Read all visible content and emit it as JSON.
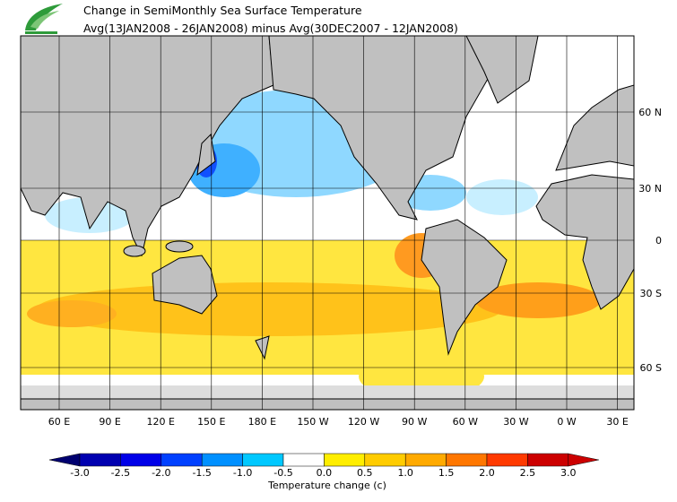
{
  "header": {
    "title": "Change in SemiMonthly Sea Surface Temperature",
    "subtitle": "Avg(13JAN2008 - 26JAN2008) minus Avg(30DEC2007 - 12JAN2008)"
  },
  "map": {
    "lon_labels": [
      "60 E",
      "90 E",
      "120 E",
      "150 E",
      "180 E",
      "150 W",
      "120 W",
      "90 W",
      "60 W",
      "30 W",
      "0 W",
      "30 E"
    ],
    "lat_labels": [
      "60 N",
      "30 N",
      "0",
      "30 S",
      "60 S"
    ]
  },
  "colorbar": {
    "ticks": [
      "-3.0",
      "-2.5",
      "-2.0",
      "-1.5",
      "-1.0",
      "-0.5",
      "0.0",
      "0.5",
      "1.0",
      "1.5",
      "2.0",
      "2.5",
      "3.0"
    ],
    "colors": [
      "#000070",
      "#0000b0",
      "#0000e8",
      "#0040ff",
      "#0090ff",
      "#00c8ff",
      "#ffffff",
      "#ffee00",
      "#ffcc00",
      "#ffaa00",
      "#ff7700",
      "#ff3a00",
      "#cc0000",
      "#cc0000"
    ],
    "title": "Temperature change  (c)"
  }
}
